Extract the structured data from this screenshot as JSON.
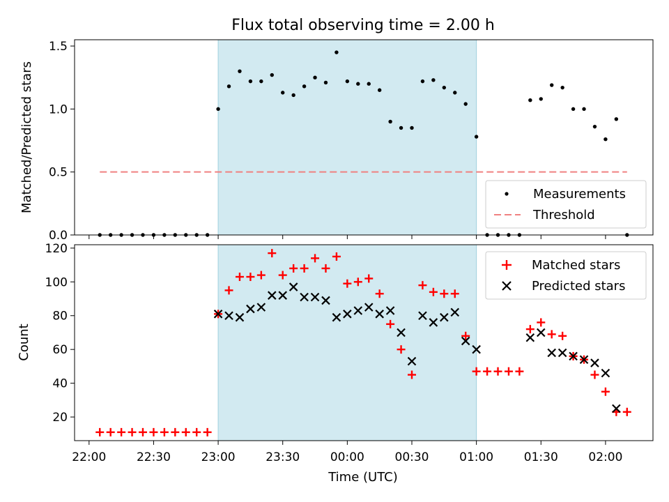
{
  "figure_title": "Flux total observing time = 2.00 h",
  "xlabel": "Time (UTC)",
  "x_tick_labels": [
    "22:00",
    "22:30",
    "23:00",
    "23:30",
    "00:00",
    "00:30",
    "01:00",
    "01:30",
    "02:00"
  ],
  "colors": {
    "measurement": "#000000",
    "threshold": "#f08080",
    "matched": "#ff0000",
    "predicted": "#000000",
    "window_fill": "#add8e6"
  },
  "chart_data": [
    {
      "type": "scatter",
      "ylabel": "Matched/Predicted stars",
      "ylim": [
        0,
        1.55
      ],
      "y_ticks": [
        0.0,
        0.5,
        1.0,
        1.5
      ],
      "y_tick_labels": [
        "0.0",
        "0.5",
        "1.0",
        "1.5"
      ],
      "legend_position": "lower-right",
      "highlight_window": {
        "start": "23:00",
        "end": "01:00"
      },
      "series": [
        {
          "name": "Measurements",
          "marker": "dot",
          "x": [
            "22:05",
            "22:10",
            "22:15",
            "22:20",
            "22:25",
            "22:30",
            "22:35",
            "22:40",
            "22:45",
            "22:50",
            "22:55",
            "23:00",
            "23:05",
            "23:10",
            "23:15",
            "23:20",
            "23:25",
            "23:30",
            "23:35",
            "23:40",
            "23:45",
            "23:50",
            "23:55",
            "00:00",
            "00:05",
            "00:10",
            "00:15",
            "00:20",
            "00:25",
            "00:30",
            "00:35",
            "00:40",
            "00:45",
            "00:50",
            "00:55",
            "01:00",
            "01:05",
            "01:10",
            "01:15",
            "01:20",
            "01:25",
            "01:30",
            "01:35",
            "01:40",
            "01:45",
            "01:50",
            "01:55",
            "02:00",
            "02:05",
            "02:10"
          ],
          "y": [
            0,
            0,
            0,
            0,
            0,
            0,
            0,
            0,
            0,
            0,
            0,
            1.0,
            1.18,
            1.3,
            1.22,
            1.22,
            1.27,
            1.13,
            1.11,
            1.18,
            1.25,
            1.21,
            1.45,
            1.22,
            1.2,
            1.2,
            1.15,
            0.9,
            0.85,
            0.85,
            1.22,
            1.23,
            1.17,
            1.13,
            1.04,
            0.78,
            0,
            0,
            0,
            0,
            1.07,
            1.08,
            1.19,
            1.17,
            1.0,
            1.0,
            0.86,
            0.76,
            0.92,
            0
          ]
        },
        {
          "name": "Threshold",
          "style": "dashed-line",
          "x": [
            "22:05",
            "02:10"
          ],
          "y": [
            0.5,
            0.5
          ]
        }
      ]
    },
    {
      "type": "scatter",
      "ylabel": "Count",
      "ylim": [
        6,
        122
      ],
      "y_ticks": [
        20,
        40,
        60,
        80,
        100,
        120
      ],
      "y_tick_labels": [
        "20",
        "40",
        "60",
        "80",
        "100",
        "120"
      ],
      "legend_position": "upper-right",
      "highlight_window": {
        "start": "23:00",
        "end": "01:00"
      },
      "series": [
        {
          "name": "Matched stars",
          "marker": "plus",
          "x": [
            "22:05",
            "22:10",
            "22:15",
            "22:20",
            "22:25",
            "22:30",
            "22:35",
            "22:40",
            "22:45",
            "22:50",
            "22:55",
            "23:00",
            "23:05",
            "23:10",
            "23:15",
            "23:20",
            "23:25",
            "23:30",
            "23:35",
            "23:40",
            "23:45",
            "23:50",
            "23:55",
            "00:00",
            "00:05",
            "00:10",
            "00:15",
            "00:20",
            "00:25",
            "00:30",
            "00:35",
            "00:40",
            "00:45",
            "00:50",
            "00:55",
            "01:00",
            "01:05",
            "01:10",
            "01:15",
            "01:20",
            "01:25",
            "01:30",
            "01:35",
            "01:40",
            "01:45",
            "01:50",
            "01:55",
            "02:00",
            "02:05",
            "02:10"
          ],
          "y": [
            11,
            11,
            11,
            11,
            11,
            11,
            11,
            11,
            11,
            11,
            11,
            81,
            95,
            103,
            103,
            104,
            117,
            104,
            108,
            108,
            114,
            108,
            115,
            99,
            100,
            102,
            93,
            75,
            60,
            45,
            98,
            94,
            93,
            93,
            68,
            47,
            47,
            47,
            47,
            47,
            72,
            76,
            69,
            68,
            56,
            54,
            45,
            35,
            23,
            23
          ]
        },
        {
          "name": "Predicted stars",
          "marker": "x",
          "x": [
            "23:00",
            "23:05",
            "23:10",
            "23:15",
            "23:20",
            "23:25",
            "23:30",
            "23:35",
            "23:40",
            "23:45",
            "23:50",
            "23:55",
            "00:00",
            "00:05",
            "00:10",
            "00:15",
            "00:20",
            "00:25",
            "00:30",
            "00:35",
            "00:40",
            "00:45",
            "00:50",
            "00:55",
            "01:00",
            "01:25",
            "01:30",
            "01:35",
            "01:40",
            "01:45",
            "01:50",
            "01:55",
            "02:00",
            "02:05"
          ],
          "y": [
            81,
            80,
            79,
            84,
            85,
            92,
            92,
            97,
            91,
            91,
            89,
            79,
            81,
            83,
            85,
            81,
            83,
            70,
            53,
            80,
            76,
            79,
            82,
            65,
            60,
            67,
            70,
            58,
            58,
            56,
            54,
            52,
            46,
            25
          ]
        }
      ]
    }
  ]
}
